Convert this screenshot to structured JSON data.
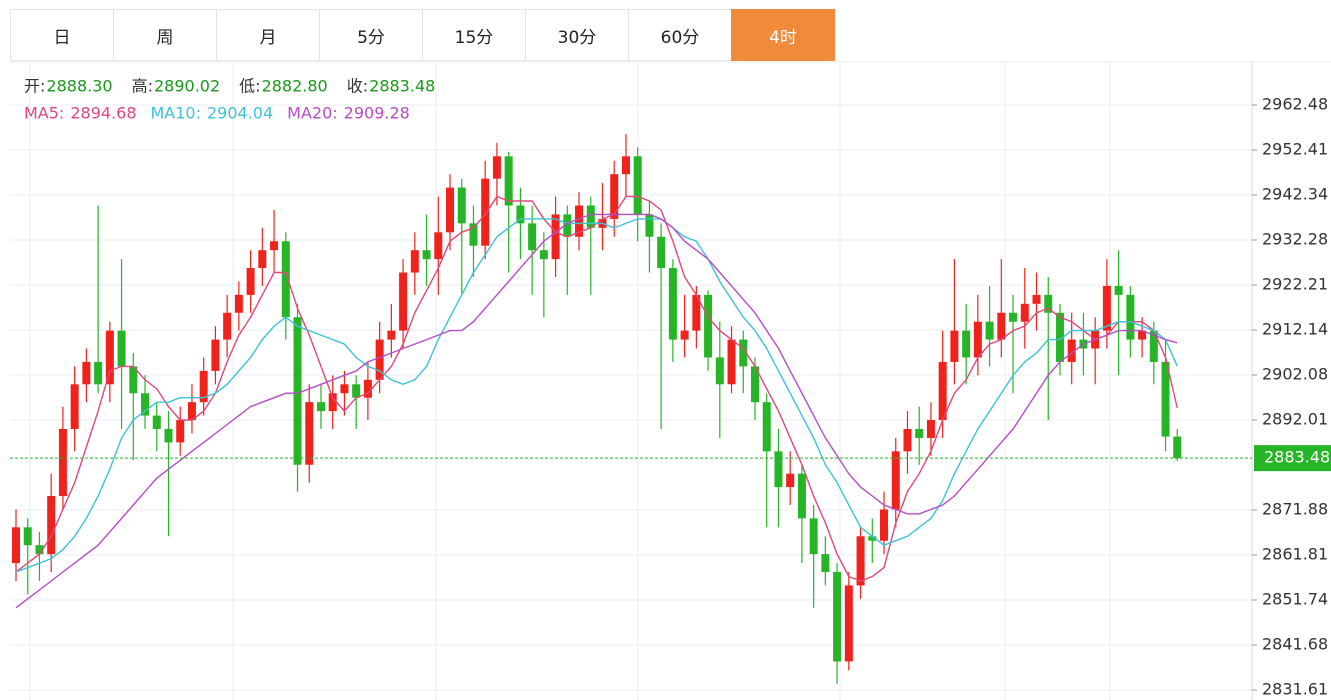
{
  "tabs": [
    "日",
    "周",
    "月",
    "5分",
    "15分",
    "30分",
    "60分",
    "4时"
  ],
  "active_tab": 7,
  "header": [
    {
      "label": "开:",
      "value": "2888.30"
    },
    {
      "label": "高:",
      "value": "2890.02"
    },
    {
      "label": "低:",
      "value": "2882.80"
    },
    {
      "label": "收:",
      "value": "2883.48"
    }
  ],
  "chart_data": {
    "type": "candlestick",
    "up_color": "#f0221c",
    "down_color": "#26b526",
    "ylim": [
      2829.37,
      2972.1
    ],
    "yticks": [
      2831.61,
      2841.68,
      2851.74,
      2861.81,
      2871.88,
      2892.01,
      2902.08,
      2912.14,
      2922.21,
      2932.28,
      2942.34,
      2952.41,
      2962.48
    ],
    "grid": true,
    "open": [
      2860,
      2868,
      2864,
      2862,
      2875,
      2890,
      2900,
      2905,
      2900,
      2912,
      2904,
      2898,
      2893,
      2890,
      2887,
      2892,
      2896,
      2903,
      2910,
      2916,
      2920,
      2926,
      2930,
      2932,
      2915,
      2882,
      2896,
      2894,
      2898,
      2900,
      2897,
      2901,
      2910,
      2912,
      2925,
      2930,
      2928,
      2934,
      2944,
      2936,
      2931,
      2946,
      2951,
      2940,
      2936,
      2930,
      2928,
      2938,
      2933,
      2940,
      2935,
      2937,
      2947,
      2951,
      2938,
      2933,
      2926,
      2910,
      2912,
      2920,
      2906,
      2900,
      2910,
      2904,
      2896,
      2885,
      2877,
      2880,
      2870,
      2862,
      2858,
      2838,
      2855,
      2866,
      2865,
      2872,
      2885,
      2890,
      2888,
      2892,
      2905,
      2912,
      2906,
      2914,
      2910,
      2916,
      2914,
      2918,
      2920,
      2916,
      2905,
      2910,
      2908,
      2912,
      2922,
      2920,
      2910,
      2912,
      2905,
      2888.3
    ],
    "high": [
      2872,
      2870,
      2867,
      2880,
      2895,
      2904,
      2908,
      2940,
      2914,
      2928,
      2907,
      2902,
      2896,
      2894,
      2895,
      2900,
      2906,
      2913,
      2920,
      2923,
      2930,
      2935,
      2939,
      2934,
      2918,
      2900,
      2900,
      2902,
      2903,
      2902,
      2905,
      2914,
      2918,
      2928,
      2934,
      2938,
      2942,
      2947,
      2946,
      2940,
      2950,
      2954,
      2952,
      2944,
      2940,
      2934,
      2942,
      2940,
      2943,
      2942,
      2945,
      2950,
      2956,
      2953,
      2941,
      2936,
      2928,
      2920,
      2922,
      2921,
      2914,
      2913,
      2912,
      2906,
      2898,
      2890,
      2885,
      2882,
      2873,
      2866,
      2860,
      2858,
      2868,
      2870,
      2876,
      2888,
      2894,
      2895,
      2896,
      2912,
      2928,
      2918,
      2920,
      2922,
      2928,
      2920,
      2926,
      2925,
      2924,
      2918,
      2916,
      2916,
      2915,
      2928,
      2930,
      2922,
      2915,
      2914,
      2910,
      2890.02
    ],
    "low": [
      2856,
      2853,
      2856,
      2858,
      2872,
      2885,
      2896,
      2898,
      2896,
      2890,
      2883,
      2890,
      2885,
      2866,
      2884,
      2889,
      2893,
      2900,
      2906,
      2912,
      2916,
      2922,
      2925,
      2910,
      2876,
      2878,
      2890,
      2890,
      2893,
      2890,
      2892,
      2898,
      2906,
      2908,
      2920,
      2922,
      2920,
      2930,
      2920,
      2924,
      2928,
      2940,
      2925,
      2928,
      2920,
      2915,
      2924,
      2920,
      2930,
      2920,
      2930,
      2933,
      2942,
      2932,
      2925,
      2890,
      2905,
      2906,
      2908,
      2903,
      2888,
      2898,
      2898,
      2892,
      2868,
      2868,
      2873,
      2860,
      2850,
      2855,
      2833,
      2836,
      2852,
      2860,
      2862,
      2868,
      2880,
      2882,
      2884,
      2888,
      2900,
      2900,
      2902,
      2904,
      2906,
      2898,
      2908,
      2912,
      2892,
      2902,
      2900,
      2902,
      2900,
      2908,
      2902,
      2906,
      2906,
      2900,
      2885,
      2882.8
    ],
    "close": [
      2868,
      2864,
      2862,
      2875,
      2890,
      2900,
      2905,
      2900,
      2912,
      2904,
      2898,
      2893,
      2890,
      2887,
      2892,
      2896,
      2903,
      2910,
      2916,
      2920,
      2926,
      2930,
      2932,
      2915,
      2882,
      2896,
      2894,
      2898,
      2900,
      2897,
      2901,
      2910,
      2912,
      2925,
      2930,
      2928,
      2934,
      2944,
      2936,
      2931,
      2946,
      2951,
      2940,
      2936,
      2930,
      2928,
      2938,
      2933,
      2940,
      2935,
      2937,
      2947,
      2951,
      2938,
      2933,
      2926,
      2910,
      2912,
      2920,
      2906,
      2900,
      2910,
      2904,
      2896,
      2885,
      2877,
      2880,
      2870,
      2862,
      2858,
      2838,
      2855,
      2866,
      2865,
      2872,
      2885,
      2890,
      2888,
      2892,
      2905,
      2912,
      2906,
      2914,
      2910,
      2916,
      2914,
      2918,
      2920,
      2916,
      2905,
      2910,
      2908,
      2912,
      2922,
      2920,
      2910,
      2912,
      2905,
      2888.3,
      2883.48
    ],
    "series": [
      {
        "name": "MA5:",
        "color": "#e2467c",
        "values": [
          2858,
          2860,
          2862,
          2866,
          2872,
          2878,
          2886,
          2894,
          2903,
          2904,
          2904,
          2901,
          2899,
          2895,
          2892,
          2892,
          2894,
          2898,
          2905,
          2911,
          2915,
          2920,
          2925,
          2925,
          2917,
          2911,
          2904,
          2897,
          2894,
          2897,
          2898,
          2901,
          2904,
          2909,
          2916,
          2921,
          2926,
          2932,
          2934,
          2935,
          2938,
          2942,
          2941,
          2941,
          2941,
          2937,
          2934,
          2933,
          2934,
          2935,
          2937,
          2938,
          2942,
          2942,
          2941,
          2939,
          2932,
          2924,
          2920,
          2915,
          2912,
          2910,
          2908,
          2904,
          2899,
          2894,
          2888,
          2882,
          2875,
          2869,
          2862,
          2857,
          2856,
          2857,
          2859,
          2869,
          2876,
          2880,
          2885,
          2892,
          2898,
          2901,
          2906,
          2909,
          2910,
          2912,
          2913,
          2916,
          2917,
          2915,
          2914,
          2912,
          2910,
          2911,
          2914,
          2914,
          2914,
          2912,
          2906,
          2894.68
        ]
      },
      {
        "name": "MA10:",
        "color": "#3cc3d6",
        "values": [
          2858,
          2859,
          2860,
          2861,
          2863,
          2866,
          2870,
          2875,
          2881,
          2888,
          2892,
          2894,
          2896,
          2896,
          2897,
          2897,
          2897,
          2898,
          2900,
          2903,
          2906,
          2910,
          2913,
          2915,
          2913,
          2912,
          2911,
          2910,
          2909,
          2906,
          2904,
          2903,
          2901,
          2900,
          2901,
          2904,
          2910,
          2915,
          2920,
          2925,
          2929,
          2933,
          2935,
          2937,
          2937,
          2937,
          2937,
          2936,
          2936,
          2936,
          2936,
          2935,
          2936,
          2937,
          2937,
          2937,
          2935,
          2933,
          2932,
          2928,
          2923,
          2919,
          2915,
          2912,
          2908,
          2903,
          2898,
          2893,
          2888,
          2882,
          2878,
          2873,
          2868,
          2866,
          2864,
          2865,
          2866,
          2868,
          2870,
          2874,
          2880,
          2885,
          2890,
          2894,
          2898,
          2902,
          2905,
          2907,
          2910,
          2910,
          2912,
          2912,
          2912,
          2913,
          2914,
          2914,
          2913,
          2912,
          2910,
          2904.04
        ]
      },
      {
        "name": "MA20:",
        "color": "#b54cc6",
        "values": [
          2850,
          2852,
          2854,
          2856,
          2858,
          2860,
          2862,
          2864,
          2867,
          2870,
          2873,
          2876,
          2879,
          2881,
          2883,
          2885,
          2887,
          2889,
          2891,
          2893,
          2895,
          2896,
          2897,
          2898,
          2898,
          2899,
          2900,
          2901,
          2902,
          2903,
          2905,
          2906,
          2907,
          2908,
          2909,
          2910,
          2911,
          2912,
          2912,
          2914,
          2917,
          2920,
          2923,
          2926,
          2929,
          2932,
          2934,
          2936,
          2937,
          2938,
          2938,
          2938,
          2938,
          2938,
          2938,
          2937,
          2935,
          2932,
          2930,
          2928,
          2925,
          2922,
          2919,
          2916,
          2912,
          2908,
          2903,
          2898,
          2893,
          2888,
          2884,
          2880,
          2877,
          2875,
          2873,
          2872,
          2871,
          2871,
          2872,
          2873,
          2875,
          2878,
          2881,
          2884,
          2887,
          2890,
          2894,
          2898,
          2902,
          2905,
          2907,
          2909,
          2910,
          2911,
          2912,
          2912,
          2912,
          2911,
          2910,
          2909.28
        ]
      }
    ]
  }
}
